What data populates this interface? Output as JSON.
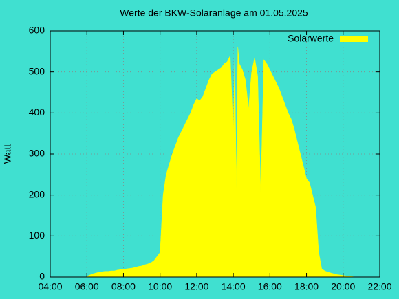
{
  "chart_data": {
    "type": "area",
    "title": "Werte der BKW-Solaranlage am 01.05.2025",
    "y_label": "Watt",
    "background": "#40e0d0",
    "grid": true,
    "legend": "top-right",
    "xlim": [
      "04:00",
      "22:00"
    ],
    "xticks": [
      "04:00",
      "06:00",
      "08:00",
      "10:00",
      "12:00",
      "14:00",
      "16:00",
      "18:00",
      "20:00",
      "22:00"
    ],
    "ylim": [
      0,
      600
    ],
    "yticks": [
      0,
      100,
      200,
      300,
      400,
      500,
      600
    ],
    "x": [
      "06:00",
      "06:10",
      "06:20",
      "06:30",
      "06:40",
      "06:50",
      "07:00",
      "07:10",
      "07:20",
      "07:30",
      "07:40",
      "07:50",
      "08:00",
      "08:10",
      "08:20",
      "08:30",
      "08:40",
      "08:50",
      "09:00",
      "09:10",
      "09:20",
      "09:30",
      "09:40",
      "09:50",
      "10:00",
      "10:05",
      "10:10",
      "10:20",
      "10:30",
      "10:40",
      "10:50",
      "11:00",
      "11:10",
      "11:20",
      "11:30",
      "11:40",
      "11:50",
      "12:00",
      "12:10",
      "12:20",
      "12:30",
      "12:40",
      "12:50",
      "13:00",
      "13:10",
      "13:20",
      "13:30",
      "13:40",
      "13:50",
      "14:00",
      "14:05",
      "14:10",
      "14:15",
      "14:20",
      "14:30",
      "14:40",
      "14:50",
      "15:00",
      "15:10",
      "15:20",
      "15:30",
      "15:40",
      "15:50",
      "16:00",
      "16:10",
      "16:20",
      "16:30",
      "16:40",
      "16:50",
      "17:00",
      "17:10",
      "17:20",
      "17:30",
      "17:40",
      "17:50",
      "18:00",
      "18:10",
      "18:20",
      "18:30",
      "18:40",
      "18:50",
      "19:00",
      "19:10",
      "19:20",
      "19:30",
      "19:40",
      "19:50",
      "20:00",
      "20:10",
      "20:20",
      "20:30",
      "20:40"
    ],
    "series": [
      {
        "name": "Solarwerte",
        "color": "#ffff00",
        "values": [
          2,
          5,
          8,
          10,
          12,
          13,
          14,
          14,
          15,
          15,
          17,
          18,
          19,
          20,
          21,
          22,
          24,
          26,
          27,
          30,
          32,
          35,
          40,
          50,
          60,
          130,
          200,
          250,
          275,
          300,
          320,
          340,
          355,
          370,
          385,
          400,
          420,
          435,
          430,
          440,
          460,
          480,
          495,
          500,
          505,
          510,
          520,
          525,
          540,
          350,
          545,
          215,
          560,
          520,
          505,
          480,
          410,
          500,
          535,
          490,
          205,
          530,
          520,
          505,
          490,
          475,
          460,
          440,
          420,
          400,
          385,
          360,
          330,
          300,
          270,
          240,
          230,
          200,
          170,
          60,
          20,
          15,
          12,
          10,
          8,
          6,
          5,
          4,
          3,
          2,
          1,
          0
        ]
      }
    ]
  }
}
